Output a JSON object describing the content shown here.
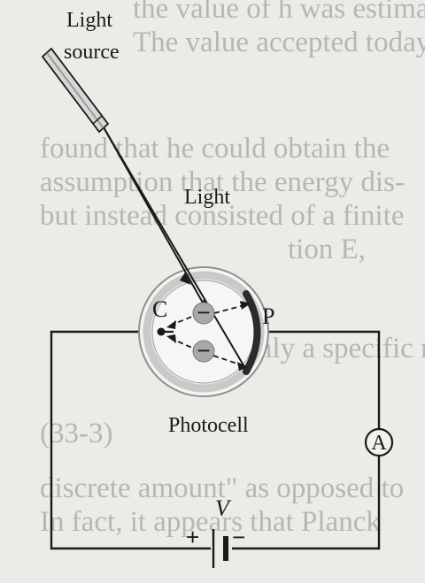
{
  "labels": {
    "light_source_line1": "Light",
    "light_source_line2": "source",
    "light": "Light",
    "cathode": "C",
    "plate": "P",
    "photocell": "Photocell",
    "ammeter": "A",
    "voltage": "V",
    "plus": "+",
    "minus": "−",
    "electron_sign": "−"
  },
  "background_text": [
    "the value of h was estimated by",
    "The value accepted today is",
    "found that he could obtain the",
    "assumption that the energy dis-",
    "but instead consisted of a finite",
    "tion E,",
    "be only a specific number",
    "(33-3)",
    "discrete amount\" as opposed to",
    "In fact, it appears that Planck"
  ],
  "colors": {
    "ink": "#1a1a1a",
    "paper": "#ecebe8",
    "bleed_text": "#b8b6b2",
    "electron": "#a8a8a8",
    "plate": "#2a2a2a",
    "glass": "#c9c9c7"
  }
}
